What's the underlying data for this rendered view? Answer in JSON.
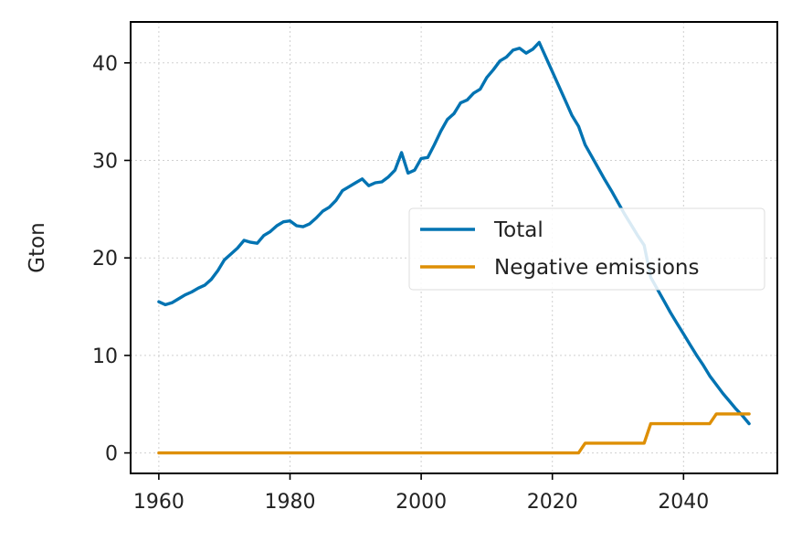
{
  "chart_data": {
    "type": "line",
    "title": "",
    "xlabel": "",
    "ylabel": "Gton",
    "xlim": [
      1955.7,
      2054.3
    ],
    "ylim": [
      -2.1,
      44.2
    ],
    "xticks": [
      1960,
      1980,
      2000,
      2020,
      2040
    ],
    "yticks": [
      0,
      10,
      20,
      30,
      40
    ],
    "grid": true,
    "legend_position": "center-right",
    "series": [
      {
        "name": "Total",
        "color": "#0173b2",
        "points": [
          [
            1960,
            15.5
          ],
          [
            1961,
            15.2
          ],
          [
            1962,
            15.4
          ],
          [
            1963,
            15.8
          ],
          [
            1964,
            16.2
          ],
          [
            1965,
            16.5
          ],
          [
            1966,
            16.9
          ],
          [
            1967,
            17.2
          ],
          [
            1968,
            17.8
          ],
          [
            1969,
            18.7
          ],
          [
            1970,
            19.8
          ],
          [
            1971,
            20.4
          ],
          [
            1972,
            21.0
          ],
          [
            1973,
            21.8
          ],
          [
            1974,
            21.6
          ],
          [
            1975,
            21.5
          ],
          [
            1976,
            22.3
          ],
          [
            1977,
            22.7
          ],
          [
            1978,
            23.3
          ],
          [
            1979,
            23.7
          ],
          [
            1980,
            23.8
          ],
          [
            1981,
            23.3
          ],
          [
            1982,
            23.2
          ],
          [
            1983,
            23.5
          ],
          [
            1984,
            24.1
          ],
          [
            1985,
            24.8
          ],
          [
            1986,
            25.2
          ],
          [
            1987,
            25.9
          ],
          [
            1988,
            26.9
          ],
          [
            1989,
            27.3
          ],
          [
            1990,
            27.7
          ],
          [
            1991,
            28.1
          ],
          [
            1992,
            27.4
          ],
          [
            1993,
            27.7
          ],
          [
            1994,
            27.8
          ],
          [
            1995,
            28.3
          ],
          [
            1996,
            29.0
          ],
          [
            1997,
            30.8
          ],
          [
            1998,
            28.7
          ],
          [
            1999,
            29.0
          ],
          [
            2000,
            30.2
          ],
          [
            2001,
            30.3
          ],
          [
            2002,
            31.6
          ],
          [
            2003,
            33.0
          ],
          [
            2004,
            34.2
          ],
          [
            2005,
            34.8
          ],
          [
            2006,
            35.9
          ],
          [
            2007,
            36.2
          ],
          [
            2008,
            36.9
          ],
          [
            2009,
            37.3
          ],
          [
            2010,
            38.5
          ],
          [
            2011,
            39.3
          ],
          [
            2012,
            40.2
          ],
          [
            2013,
            40.6
          ],
          [
            2014,
            41.3
          ],
          [
            2015,
            41.5
          ],
          [
            2016,
            41.0
          ],
          [
            2017,
            41.4
          ],
          [
            2018,
            42.1
          ],
          [
            2019,
            40.6
          ],
          [
            2020,
            39.1
          ],
          [
            2021,
            37.6
          ],
          [
            2022,
            36.1
          ],
          [
            2023,
            34.6
          ],
          [
            2024,
            33.5
          ],
          [
            2025,
            31.6
          ],
          [
            2026,
            30.4
          ],
          [
            2027,
            29.2
          ],
          [
            2028,
            28.0
          ],
          [
            2029,
            26.9
          ],
          [
            2030,
            25.7
          ],
          [
            2031,
            24.5
          ],
          [
            2032,
            23.4
          ],
          [
            2033,
            22.3
          ],
          [
            2034,
            21.3
          ],
          [
            2035,
            18.0
          ],
          [
            2036,
            16.8
          ],
          [
            2037,
            15.6
          ],
          [
            2038,
            14.4
          ],
          [
            2039,
            13.3
          ],
          [
            2040,
            12.2
          ],
          [
            2041,
            11.1
          ],
          [
            2042,
            10.0
          ],
          [
            2043,
            9.0
          ],
          [
            2044,
            7.9
          ],
          [
            2045,
            7.0
          ],
          [
            2046,
            6.1
          ],
          [
            2047,
            5.3
          ],
          [
            2048,
            4.5
          ],
          [
            2049,
            3.8
          ],
          [
            2050,
            3.0
          ]
        ]
      },
      {
        "name": "Negative emissions",
        "color": "#de8f05",
        "points": [
          [
            1960,
            0
          ],
          [
            2024,
            0
          ],
          [
            2025,
            1
          ],
          [
            2034,
            1
          ],
          [
            2035,
            3
          ],
          [
            2044,
            3
          ],
          [
            2045,
            4
          ],
          [
            2050,
            4
          ]
        ]
      }
    ]
  }
}
